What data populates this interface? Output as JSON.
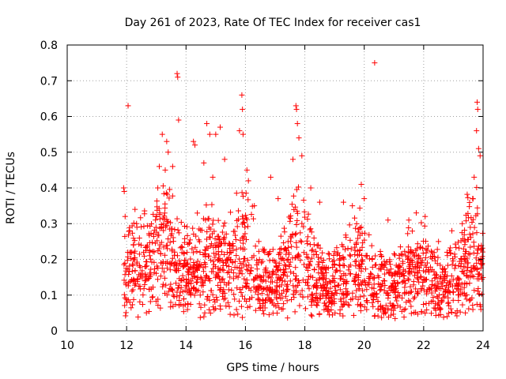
{
  "chart_data": {
    "type": "scatter",
    "title": "Day 261 of 2023, Rate Of TEC Index for receiver cas1",
    "xlabel": "GPS time / hours",
    "ylabel": "ROTI / TECUs",
    "xlim": [
      10,
      24
    ],
    "ylim": [
      0,
      0.8
    ],
    "x_ticks": [
      "10",
      "12",
      "14",
      "16",
      "18",
      "20",
      "22",
      "24"
    ],
    "y_ticks": [
      "0",
      "0.1",
      "0.2",
      "0.3",
      "0.4",
      "0.5",
      "0.6",
      "0.7",
      "0.8"
    ],
    "grid": true,
    "marker": "+",
    "series": [
      {
        "color": "#ff0000",
        "points": [
          [
            11.9,
            0.4
          ],
          [
            11.92,
            0.39
          ],
          [
            11.95,
            0.32
          ],
          [
            12.05,
            0.63
          ],
          [
            12.1,
            0.28
          ],
          [
            13.05,
            0.4
          ],
          [
            13.1,
            0.46
          ],
          [
            13.2,
            0.55
          ],
          [
            13.3,
            0.45
          ],
          [
            13.35,
            0.53
          ],
          [
            13.4,
            0.5
          ],
          [
            13.55,
            0.46
          ],
          [
            13.7,
            0.72
          ],
          [
            13.72,
            0.71
          ],
          [
            13.75,
            0.59
          ],
          [
            14.25,
            0.53
          ],
          [
            14.3,
            0.52
          ],
          [
            14.6,
            0.47
          ],
          [
            14.7,
            0.58
          ],
          [
            14.8,
            0.55
          ],
          [
            14.9,
            0.43
          ],
          [
            15.0,
            0.55
          ],
          [
            15.15,
            0.57
          ],
          [
            15.3,
            0.48
          ],
          [
            15.8,
            0.56
          ],
          [
            15.88,
            0.66
          ],
          [
            15.9,
            0.62
          ],
          [
            15.92,
            0.55
          ],
          [
            16.05,
            0.45
          ],
          [
            16.1,
            0.42
          ],
          [
            16.3,
            0.35
          ],
          [
            16.85,
            0.43
          ],
          [
            17.1,
            0.37
          ],
          [
            17.6,
            0.48
          ],
          [
            17.7,
            0.63
          ],
          [
            17.72,
            0.62
          ],
          [
            17.75,
            0.58
          ],
          [
            17.8,
            0.54
          ],
          [
            17.9,
            0.49
          ],
          [
            18.2,
            0.4
          ],
          [
            18.5,
            0.36
          ],
          [
            19.3,
            0.36
          ],
          [
            19.6,
            0.35
          ],
          [
            19.9,
            0.41
          ],
          [
            20.0,
            0.37
          ],
          [
            20.35,
            0.75
          ],
          [
            20.8,
            0.31
          ],
          [
            21.5,
            0.31
          ],
          [
            21.75,
            0.33
          ],
          [
            22.05,
            0.32
          ],
          [
            22.5,
            0.25
          ],
          [
            22.95,
            0.28
          ],
          [
            23.3,
            0.3
          ],
          [
            23.55,
            0.27
          ],
          [
            23.7,
            0.43
          ],
          [
            23.78,
            0.56
          ],
          [
            23.8,
            0.64
          ],
          [
            23.82,
            0.62
          ],
          [
            23.85,
            0.51
          ],
          [
            23.9,
            0.49
          ]
        ]
      }
    ]
  }
}
